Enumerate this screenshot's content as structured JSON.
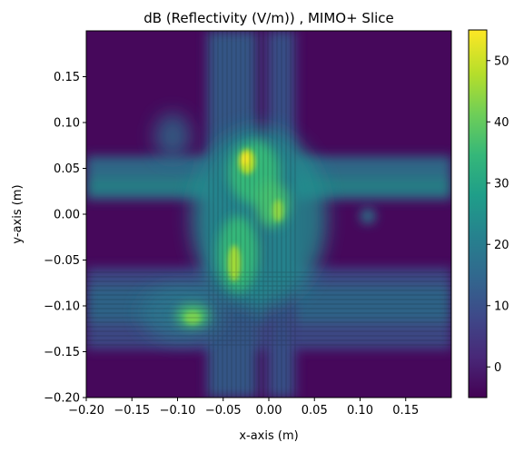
{
  "chart_data": {
    "type": "heatmap",
    "title": "dB (Reflectivity (V/m)) , MIMO+ Slice",
    "xlabel": "x-axis (m)",
    "ylabel": "y-axis (m)",
    "xlim": [
      -0.2,
      0.2
    ],
    "ylim": [
      -0.2,
      0.2
    ],
    "x_ticks": [
      -0.2,
      -0.15,
      -0.1,
      -0.05,
      0.0,
      0.05,
      0.1,
      0.15
    ],
    "x_tick_labels": [
      "−0.20",
      "−0.15",
      "−0.10",
      "−0.05",
      "0.00",
      "0.05",
      "0.10",
      "0.15"
    ],
    "y_ticks": [
      -0.2,
      -0.15,
      -0.1,
      -0.05,
      0.0,
      0.05,
      0.1,
      0.15
    ],
    "y_tick_labels": [
      "−0.20",
      "−0.15",
      "−0.10",
      "−0.05",
      "0.00",
      "0.05",
      "0.10",
      "0.15"
    ],
    "colorbar": {
      "range": [
        -5,
        55
      ],
      "ticks": [
        0,
        10,
        20,
        30,
        40,
        50
      ],
      "tick_labels": [
        "0",
        "10",
        "20",
        "30",
        "40",
        "50"
      ],
      "colormap": "viridis"
    },
    "grid": false
  },
  "colors": {
    "viridis": [
      "#440154",
      "#482878",
      "#3e4989",
      "#31688e",
      "#26828e",
      "#1f9e89",
      "#35b779",
      "#6ece58",
      "#b5de2b",
      "#fde725"
    ]
  }
}
